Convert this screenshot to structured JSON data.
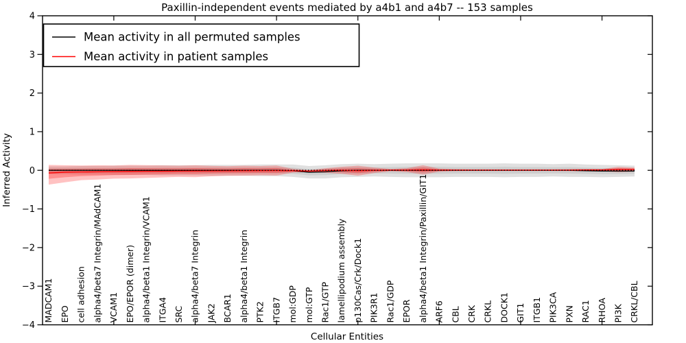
{
  "title": "Paxillin-independent events mediated by a4b1 and a4b7 -- 153 samples",
  "legend": {
    "items": [
      {
        "label": "Mean activity in all permuted samples",
        "color": "#000000"
      },
      {
        "label": "Mean activity in patient samples",
        "color": "#ff0000"
      }
    ]
  },
  "axes": {
    "xlabel": "Cellular Entities",
    "ylabel": "Inferred Activity",
    "yticks": [
      4,
      3,
      2,
      1,
      0,
      -1,
      -2,
      -3,
      -4
    ],
    "ytick_labels": [
      "4",
      "3",
      "2",
      "1",
      "0",
      "−1",
      "−2",
      "−3",
      "−4"
    ]
  },
  "colors": {
    "permuted_line": "#000000",
    "patient_line": "#ff0000",
    "permuted_band": "#000000",
    "patient_band": "#ff0000",
    "frame": "#000000"
  },
  "chart_data": {
    "type": "line",
    "title": "Paxillin-independent events mediated by a4b1 and a4b7 -- 153 samples",
    "xlabel": "Cellular Entities",
    "ylabel": "Inferred Activity",
    "ylim": [
      -4,
      4
    ],
    "x_major_tick_every": 5,
    "grid": false,
    "legend_position": "upper left",
    "zero_reference_line": {
      "style": "dotted",
      "y": 0
    },
    "categories": [
      "MADCAM1",
      "EPO",
      "cell adhesion",
      "alpha4/beta7 Integrin/MAdCAM1",
      "VCAM1",
      "EPO/EPOR (dimer)",
      "alpha4/beta1 Integrin/VCAM1",
      "ITGA4",
      "SRC",
      "alpha4/beta7 Integrin",
      "JAK2",
      "BCAR1",
      "alpha4/beta1 Integrin",
      "PTK2",
      "ITGB7",
      "mol:GDP",
      "mol:GTP",
      "Rac1/GTP",
      "lamellipodium assembly",
      "p130Cas/Crk/Dock1",
      "PIK3R1",
      "Rac1/GDP",
      "EPOR",
      "alpha4/beta1 Integrin/Paxillin/GIT1",
      "ARF6",
      "CBL",
      "CRK",
      "CRKL",
      "DOCK1",
      "GIT1",
      "ITGB1",
      "PIK3CA",
      "PXN",
      "RAC1",
      "RHOA",
      "PI3K",
      "CRKL/CBL"
    ],
    "series": [
      {
        "name": "Mean activity in all permuted samples",
        "color": "#000000",
        "values": [
          0,
          0,
          0,
          0,
          0,
          0,
          0,
          0,
          0,
          0,
          0,
          0,
          0,
          0,
          0,
          -0.01,
          -0.05,
          -0.04,
          -0.01,
          0,
          0,
          0,
          0,
          0,
          0,
          0,
          0,
          0,
          0,
          0,
          0,
          0,
          0,
          -0.01,
          -0.02,
          -0.02,
          -0.02
        ],
        "band_upper": [
          0.1,
          0.1,
          0.11,
          0.11,
          0.12,
          0.12,
          0.12,
          0.13,
          0.13,
          0.13,
          0.14,
          0.14,
          0.14,
          0.15,
          0.15,
          0.16,
          0.16,
          0.17,
          0.17,
          0.17,
          0.16,
          0.17,
          0.18,
          0.18,
          0.18,
          0.17,
          0.17,
          0.17,
          0.18,
          0.17,
          0.17,
          0.16,
          0.17,
          0.16,
          0.16,
          0.15,
          0.14
        ],
        "band_lower": [
          0.1,
          0.1,
          0.11,
          0.11,
          0.12,
          0.12,
          0.12,
          0.13,
          0.13,
          0.13,
          0.14,
          0.14,
          0.14,
          0.15,
          0.15,
          0.16,
          0.16,
          0.17,
          0.17,
          0.17,
          0.16,
          0.17,
          0.18,
          0.18,
          0.18,
          0.17,
          0.17,
          0.17,
          0.18,
          0.17,
          0.17,
          0.16,
          0.17,
          0.16,
          0.16,
          0.15,
          0.14
        ]
      },
      {
        "name": "Mean activity in patient samples",
        "color": "#ff0000",
        "values": [
          -0.07,
          -0.05,
          -0.045,
          -0.04,
          -0.035,
          -0.03,
          -0.027,
          -0.024,
          -0.02,
          -0.018,
          -0.015,
          -0.013,
          -0.01,
          -0.008,
          -0.006,
          -0.01,
          -0.02,
          -0.005,
          0,
          -0.01,
          0,
          0.005,
          0.005,
          0.01,
          0.005,
          0.005,
          0.005,
          0.005,
          0.005,
          0.005,
          0.005,
          0.005,
          0.005,
          0.008,
          0.008,
          0.02,
          0.02
        ],
        "band_upper": [
          0.21,
          0.18,
          0.17,
          0.17,
          0.16,
          0.17,
          0.16,
          0.15,
          0.14,
          0.15,
          0.13,
          0.12,
          0.13,
          0.12,
          0.13,
          0.05,
          0.025,
          0.06,
          0.09,
          0.13,
          0.07,
          0.03,
          0.05,
          0.12,
          0.04,
          0.025,
          0.02,
          0.02,
          0.02,
          0.02,
          0.02,
          0.02,
          0.025,
          0.03,
          0.03,
          0.07,
          0.05
        ],
        "band_lower": [
          0.3,
          0.26,
          0.21,
          0.2,
          0.18,
          0.18,
          0.17,
          0.16,
          0.15,
          0.16,
          0.14,
          0.13,
          0.13,
          0.12,
          0.13,
          0.05,
          0.025,
          0.06,
          0.09,
          0.13,
          0.07,
          0.03,
          0.05,
          0.12,
          0.04,
          0.025,
          0.02,
          0.02,
          0.02,
          0.02,
          0.02,
          0.02,
          0.025,
          0.03,
          0.03,
          0.07,
          0.05
        ]
      }
    ]
  }
}
